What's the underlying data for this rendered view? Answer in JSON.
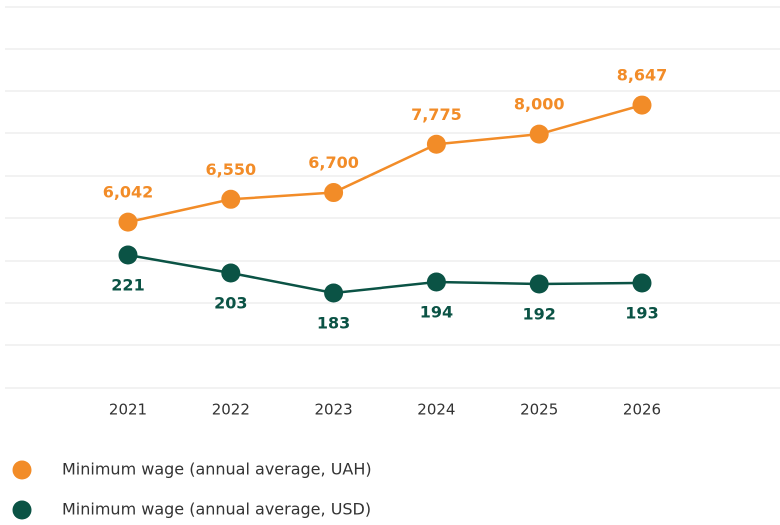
{
  "chart_data": {
    "type": "line",
    "categories": [
      "2021",
      "2022",
      "2023",
      "2024",
      "2025",
      "2026"
    ],
    "series": [
      {
        "name": "Minimum wage (annual average, UAH)",
        "color": "#f28c28",
        "values": [
          6042,
          6550,
          6700,
          7775,
          8000,
          8647
        ],
        "value_labels": [
          "6,042",
          "6,550",
          "6,700",
          "7,775",
          "8,000",
          "8,647"
        ]
      },
      {
        "name": "Minimum wage (annual average, USD)",
        "color": "#0b5345",
        "axis": "y2",
        "values": [
          221,
          203,
          183,
          194,
          192,
          193
        ]
      }
    ],
    "ylim": [
      2350,
      10830
    ],
    "y2lim": [
      88,
      469
    ],
    "grid": true,
    "legend": "bottom"
  }
}
